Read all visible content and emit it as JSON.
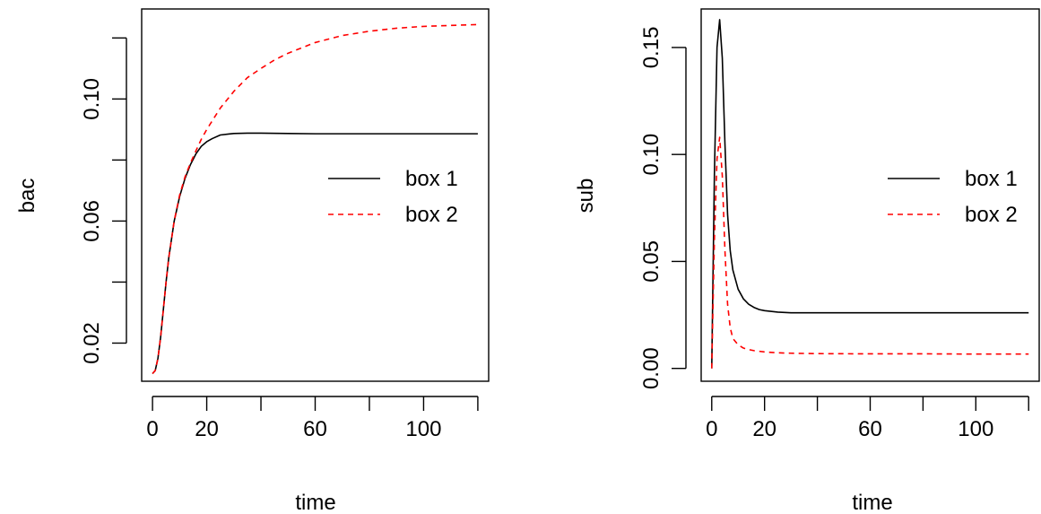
{
  "chart_data": [
    {
      "type": "line",
      "xlabel": "time",
      "ylabel": "bac",
      "xlim": [
        -4,
        124
      ],
      "ylim": [
        0.0075,
        0.1295
      ],
      "xticks": [
        0,
        20,
        40,
        60,
        80,
        100,
        120
      ],
      "xtick_labels": [
        "0",
        "20",
        "",
        "60",
        "",
        "100",
        ""
      ],
      "yticks": [
        0.02,
        0.04,
        0.06,
        0.08,
        0.1,
        0.12
      ],
      "ytick_labels": [
        "0.02",
        "",
        "0.06",
        "",
        "0.10",
        ""
      ],
      "legend": {
        "placement": "right"
      },
      "series": [
        {
          "name": "box 1",
          "color": "#000000",
          "dash": "solid",
          "x": [
            0,
            1,
            2,
            3,
            4,
            5,
            6,
            8,
            10,
            12,
            14,
            16,
            18,
            20,
            22,
            25,
            28,
            30,
            35,
            40,
            50,
            60,
            80,
            100,
            120
          ],
          "y": [
            0.01,
            0.011,
            0.015,
            0.022,
            0.031,
            0.04,
            0.048,
            0.06,
            0.068,
            0.074,
            0.0785,
            0.082,
            0.0845,
            0.086,
            0.087,
            0.0882,
            0.0885,
            0.0887,
            0.0888,
            0.0888,
            0.0887,
            0.0886,
            0.0886,
            0.0886,
            0.0886
          ]
        },
        {
          "name": "box 2",
          "color": "#ff0000",
          "dash": "dashed",
          "x": [
            0,
            1,
            2,
            3,
            4,
            5,
            6,
            8,
            10,
            12,
            14,
            16,
            18,
            20,
            25,
            30,
            35,
            40,
            45,
            50,
            60,
            70,
            80,
            90,
            100,
            110,
            120
          ],
          "y": [
            0.01,
            0.011,
            0.015,
            0.022,
            0.031,
            0.04,
            0.048,
            0.06,
            0.0685,
            0.0745,
            0.079,
            0.083,
            0.0868,
            0.09,
            0.097,
            0.1025,
            0.107,
            0.11,
            0.1128,
            0.115,
            0.1185,
            0.1208,
            0.1222,
            0.1232,
            0.1238,
            0.1241,
            0.1244
          ]
        }
      ]
    },
    {
      "type": "line",
      "xlabel": "time",
      "ylabel": "sub",
      "xlim": [
        -4,
        124
      ],
      "ylim": [
        -0.006,
        0.168
      ],
      "xticks": [
        0,
        20,
        40,
        60,
        80,
        100,
        120
      ],
      "xtick_labels": [
        "0",
        "20",
        "",
        "60",
        "",
        "100",
        ""
      ],
      "yticks": [
        0.0,
        0.05,
        0.1,
        0.15
      ],
      "ytick_labels": [
        "0.00",
        "0.05",
        "0.10",
        "0.15"
      ],
      "legend": {
        "placement": "right"
      },
      "series": [
        {
          "name": "box 1",
          "color": "#000000",
          "dash": "solid",
          "x": [
            0,
            1,
            2,
            3,
            4,
            5,
            6,
            7,
            8,
            10,
            12,
            14,
            16,
            18,
            20,
            25,
            30,
            40,
            60,
            80,
            100,
            120
          ],
          "y": [
            0.0,
            0.09,
            0.15,
            0.163,
            0.145,
            0.105,
            0.072,
            0.055,
            0.046,
            0.037,
            0.0325,
            0.03,
            0.0285,
            0.0275,
            0.027,
            0.0263,
            0.026,
            0.026,
            0.026,
            0.026,
            0.026,
            0.026
          ]
        },
        {
          "name": "box 2",
          "color": "#ff0000",
          "dash": "dashed",
          "x": [
            0,
            1,
            2,
            3,
            4,
            5,
            6,
            7,
            8,
            10,
            12,
            14,
            16,
            18,
            20,
            25,
            30,
            40,
            60,
            80,
            100,
            120
          ],
          "y": [
            0.0,
            0.06,
            0.098,
            0.108,
            0.09,
            0.055,
            0.03,
            0.019,
            0.014,
            0.011,
            0.0095,
            0.0088,
            0.0083,
            0.008,
            0.0077,
            0.0073,
            0.0071,
            0.0069,
            0.0068,
            0.0068,
            0.0067,
            0.0067
          ]
        }
      ]
    }
  ]
}
